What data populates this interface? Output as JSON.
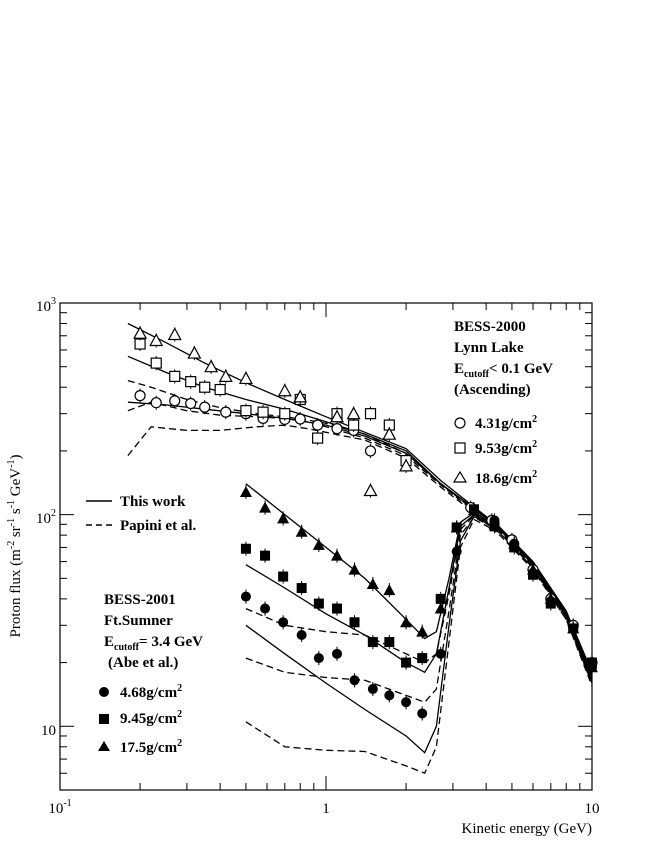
{
  "chart_data": {
    "type": "scatter",
    "title": "",
    "xlabel": "Kinetic energy (GeV)",
    "ylabel": "Proton flux (m-2 sr-1 s-1 GeV-1)",
    "xscale": "log",
    "yscale": "log",
    "xlim": [
      0.1,
      10
    ],
    "ylim": [
      5,
      1000
    ],
    "x_tick_labels": {
      "0.1": "10^-1",
      "1": "1",
      "10": "10"
    },
    "y_tick_labels": {
      "10": "10",
      "100": "10^2",
      "1000": "10^3"
    },
    "group_2000": {
      "title": "BESS-2000",
      "location": "Lynn Lake",
      "cutoff": "< 0.1 GeV",
      "note": "(Ascending)",
      "placement": "top-right"
    },
    "group_2001": {
      "title": "BESS-2001",
      "location": "Ft.Sumner",
      "cutoff": "= 3.4 GeV",
      "note": "(Abe et al.)",
      "placement": "middle-left"
    },
    "line_legend": {
      "this_work": "This work",
      "papini": "Papini et al."
    },
    "series": [
      {
        "name": "4.31g/cm2",
        "group": "2000",
        "marker": "open-circle",
        "x": [
          0.2,
          0.23,
          0.27,
          0.31,
          0.35,
          0.42,
          0.5,
          0.58,
          0.7,
          0.8,
          0.93,
          1.1,
          1.27,
          1.47,
          2.0,
          3.5,
          4.2,
          5.0,
          6.0,
          7.0,
          8.5,
          10.0
        ],
        "y": [
          365,
          338,
          345,
          335,
          322,
          305,
          300,
          285,
          282,
          283,
          265,
          255,
          250,
          200,
          180,
          108,
          94,
          76,
          55,
          40,
          30,
          20
        ]
      },
      {
        "name": "9.53g/cm2",
        "group": "2000",
        "marker": "open-square",
        "x": [
          0.2,
          0.23,
          0.27,
          0.31,
          0.35,
          0.4,
          0.5,
          0.58,
          0.7,
          0.8,
          0.93,
          1.1,
          1.27,
          1.47,
          1.73,
          2.0
        ],
        "y": [
          640,
          520,
          450,
          425,
          400,
          390,
          310,
          305,
          300,
          350,
          230,
          300,
          265,
          300,
          265,
          180
        ]
      },
      {
        "name": "18.6g/cm2",
        "group": "2000",
        "marker": "open-triangle",
        "x": [
          0.2,
          0.23,
          0.27,
          0.32,
          0.37,
          0.42,
          0.5,
          0.7,
          0.8,
          1.1,
          1.27,
          1.47,
          1.73,
          2.0
        ],
        "y": [
          720,
          665,
          710,
          580,
          500,
          450,
          440,
          385,
          360,
          290,
          300,
          130,
          240,
          170
        ]
      },
      {
        "name": "4.68g/cm2",
        "group": "2001",
        "marker": "filled-circle",
        "x": [
          0.5,
          0.59,
          0.69,
          0.81,
          0.94,
          1.1,
          1.28,
          1.5,
          1.73,
          2.0,
          2.3,
          2.7,
          3.1,
          3.6,
          4.3,
          5.1,
          6.0,
          7.0,
          8.5,
          10.0
        ],
        "y": [
          41,
          36,
          31,
          27,
          21,
          22,
          16.5,
          15,
          14,
          13,
          11.5,
          22,
          67,
          104,
          94,
          73,
          53,
          39,
          29,
          19
        ]
      },
      {
        "name": "9.45g/cm2",
        "group": "2001",
        "marker": "filled-square",
        "x": [
          0.5,
          0.59,
          0.69,
          0.81,
          0.94,
          1.1,
          1.28,
          1.5,
          1.73,
          2.0,
          2.3,
          2.7,
          3.1,
          3.6,
          4.3,
          5.1,
          6.0,
          7.0,
          8.5,
          10.0
        ],
        "y": [
          69,
          64,
          51,
          45,
          38,
          36,
          31,
          25,
          25,
          20,
          21,
          40,
          87,
          106,
          88,
          70,
          52,
          38,
          29,
          20
        ]
      },
      {
        "name": "17.5g/cm2",
        "group": "2001",
        "marker": "filled-triangle",
        "x": [
          0.5,
          0.59,
          0.69,
          0.81,
          0.94,
          1.1,
          1.28,
          1.5,
          1.73,
          2.0,
          2.3,
          2.7,
          3.1,
          3.6,
          4.3,
          5.1,
          6.0,
          7.0,
          8.5,
          10.0
        ],
        "y": [
          128,
          108,
          96,
          83,
          72,
          64,
          55,
          47,
          44,
          31,
          28,
          36,
          87,
          105,
          90,
          73,
          55,
          40,
          29,
          19
        ]
      }
    ],
    "curves": [
      {
        "name": "This work 2000 4.31",
        "style": "solid",
        "x": [
          0.18,
          0.25,
          0.35,
          0.5,
          0.7,
          1.0,
          1.4,
          2.0,
          2.7,
          3.5,
          4.5,
          6,
          8,
          10
        ],
        "y": [
          340,
          330,
          315,
          300,
          285,
          265,
          235,
          195,
          140,
          110,
          85,
          58,
          33,
          17
        ]
      },
      {
        "name": "This work 2000 9.53",
        "style": "solid",
        "x": [
          0.18,
          0.25,
          0.35,
          0.5,
          0.7,
          1.0,
          1.4,
          2.0,
          2.7,
          3.5,
          4.5,
          6,
          8,
          10
        ],
        "y": [
          560,
          470,
          400,
          350,
          315,
          275,
          240,
          200,
          140,
          110,
          86,
          59,
          34,
          17.5
        ]
      },
      {
        "name": "This work 2000 18.6",
        "style": "solid",
        "x": [
          0.18,
          0.25,
          0.35,
          0.5,
          0.7,
          1.0,
          1.4,
          2.0,
          2.7,
          3.5,
          4.5,
          6,
          8,
          10
        ],
        "y": [
          800,
          650,
          520,
          420,
          350,
          290,
          245,
          205,
          145,
          112,
          87,
          60,
          35,
          18
        ]
      },
      {
        "name": "Papini 2000 4.31",
        "style": "dashed",
        "x": [
          0.18,
          0.22,
          0.3,
          0.4,
          0.55,
          0.7,
          0.85,
          1.0,
          1.4,
          2.0,
          2.7,
          3.5,
          4.5,
          6,
          8,
          10
        ],
        "y": [
          190,
          260,
          250,
          250,
          260,
          265,
          255,
          245,
          225,
          185,
          135,
          105,
          80,
          55,
          32,
          16
        ]
      },
      {
        "name": "Papini 2000 9.53",
        "style": "dashed",
        "x": [
          0.18,
          0.22,
          0.3,
          0.4,
          0.55,
          0.7,
          0.85,
          1.0,
          1.4,
          2.0,
          2.7,
          3.5,
          4.5,
          6,
          8,
          10
        ],
        "y": [
          310,
          340,
          310,
          295,
          290,
          285,
          275,
          260,
          230,
          190,
          138,
          107,
          82,
          56,
          33,
          16.5
        ]
      },
      {
        "name": "Papini 2000 18.6",
        "style": "dashed",
        "x": [
          0.18,
          0.22,
          0.3,
          0.4,
          0.55,
          0.7,
          0.85,
          1.0,
          1.4,
          2.0,
          2.7,
          3.5,
          4.5,
          6,
          8,
          10
        ],
        "y": [
          430,
          400,
          350,
          320,
          300,
          290,
          280,
          270,
          240,
          195,
          140,
          108,
          83,
          57,
          33,
          17
        ]
      },
      {
        "name": "This work 2001 4.68",
        "style": "solid",
        "x": [
          0.5,
          0.7,
          1.0,
          1.4,
          2.0,
          2.35,
          2.6,
          2.9,
          3.2,
          3.6,
          4.5,
          6,
          8,
          10
        ],
        "y": [
          30,
          22,
          16,
          12,
          9,
          7.5,
          10,
          30,
          75,
          98,
          85,
          58,
          33,
          16
        ]
      },
      {
        "name": "This work 2001 9.45",
        "style": "solid",
        "x": [
          0.5,
          0.7,
          1.0,
          1.4,
          2.0,
          2.35,
          2.6,
          2.9,
          3.2,
          3.6,
          4.5,
          6,
          8,
          10
        ],
        "y": [
          58,
          45,
          34,
          27,
          20,
          18,
          22,
          45,
          88,
          100,
          86,
          59,
          34,
          16.5
        ]
      },
      {
        "name": "This work 2001 17.5",
        "style": "solid",
        "x": [
          0.5,
          0.7,
          1.0,
          1.4,
          2.0,
          2.35,
          2.6,
          2.9,
          3.2,
          3.6,
          4.5,
          6,
          8,
          10
        ],
        "y": [
          140,
          100,
          70,
          50,
          32,
          26,
          28,
          50,
          92,
          102,
          87,
          60,
          35,
          17
        ]
      },
      {
        "name": "Papini 2001 4.68",
        "style": "dashed",
        "x": [
          0.5,
          0.7,
          1.0,
          1.4,
          2.0,
          2.35,
          2.6,
          2.9,
          3.2,
          3.6,
          4.5,
          6,
          8,
          10
        ],
        "y": [
          10.5,
          8,
          7.7,
          7.6,
          6.5,
          6,
          8,
          25,
          70,
          95,
          82,
          56,
          32,
          15.5
        ]
      },
      {
        "name": "Papini 2001 9.45",
        "style": "dashed",
        "x": [
          0.5,
          0.7,
          1.0,
          1.4,
          2.0,
          2.35,
          2.6,
          2.9,
          3.2,
          3.6,
          4.5,
          6,
          8,
          10
        ],
        "y": [
          21,
          18,
          17,
          16.5,
          14,
          13,
          15,
          35,
          80,
          97,
          84,
          57,
          33,
          16
        ]
      },
      {
        "name": "Papini 2001 17.5",
        "style": "dashed",
        "x": [
          0.5,
          0.7,
          1.0,
          1.4,
          2.0,
          2.35,
          2.6,
          2.9,
          3.2,
          3.6,
          4.5,
          6,
          8,
          10
        ],
        "y": [
          36,
          30,
          28,
          27,
          22,
          20,
          22,
          42,
          85,
          99,
          85,
          58,
          34,
          16.5
        ]
      }
    ]
  }
}
